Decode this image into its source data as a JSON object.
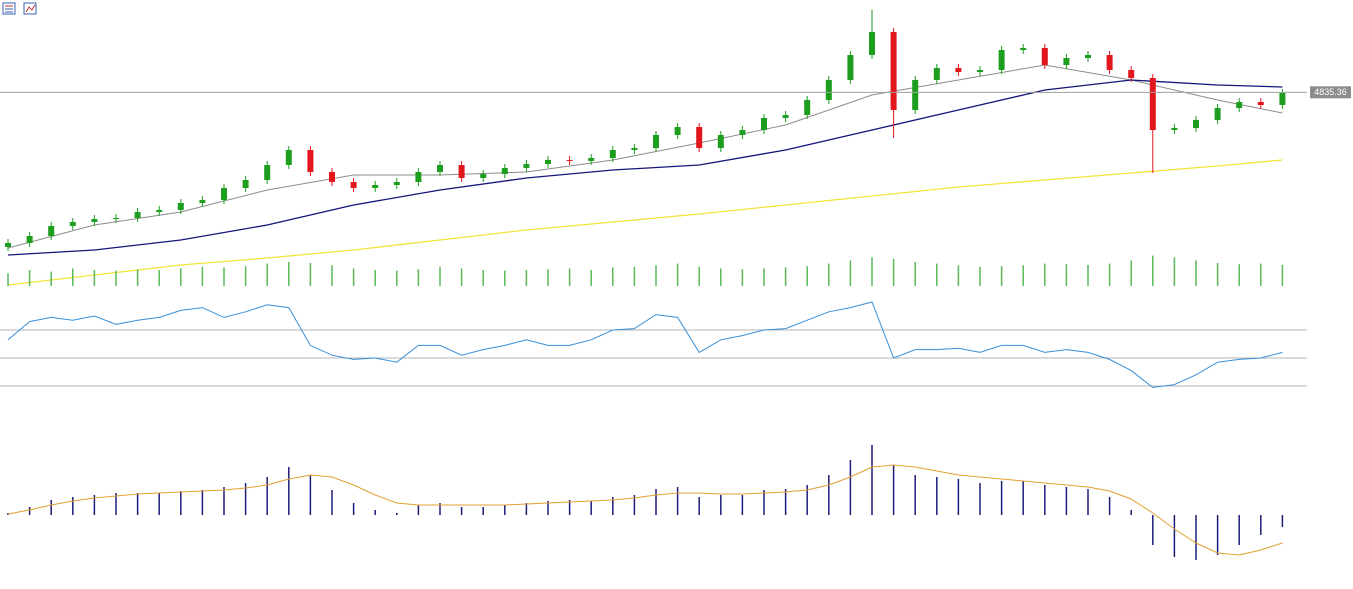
{
  "chart_data": [
    {
      "type": "candlestick",
      "ylim": [
        4440,
        5020
      ],
      "up_color": "#1e9e1e",
      "down_color": "#e3161e",
      "open": [
        4526,
        4534,
        4548,
        4568,
        4576,
        4582,
        4584,
        4596,
        4600,
        4614,
        4620,
        4644,
        4660,
        4690,
        4720,
        4676,
        4656,
        4644,
        4650,
        4656,
        4676,
        4690,
        4664,
        4672,
        4684,
        4692,
        4700,
        4698,
        4704,
        4720,
        4724,
        4750,
        4766,
        4724,
        4750,
        4760,
        4784,
        4790,
        4820,
        4860,
        4910,
        4956,
        4800,
        4860,
        4884,
        4876,
        4880,
        4920,
        4924,
        4890,
        4904,
        4910,
        4880,
        4864,
        4760,
        4764,
        4780,
        4804,
        4816,
        4810
      ],
      "high": [
        4542,
        4556,
        4576,
        4584,
        4590,
        4592,
        4604,
        4608,
        4622,
        4628,
        4652,
        4668,
        4698,
        4728,
        4728,
        4684,
        4664,
        4658,
        4664,
        4684,
        4698,
        4698,
        4680,
        4692,
        4700,
        4708,
        4708,
        4712,
        4728,
        4732,
        4758,
        4774,
        4774,
        4758,
        4768,
        4792,
        4798,
        4828,
        4868,
        4918,
        5000,
        4964,
        4868,
        4892,
        4892,
        4888,
        4928,
        4932,
        4932,
        4912,
        4918,
        4918,
        4888,
        4872,
        4772,
        4788,
        4812,
        4824,
        4824,
        4842
      ],
      "low": [
        4518,
        4526,
        4540,
        4560,
        4568,
        4574,
        4576,
        4588,
        4592,
        4606,
        4612,
        4636,
        4652,
        4682,
        4668,
        4648,
        4636,
        4636,
        4642,
        4648,
        4668,
        4656,
        4656,
        4664,
        4676,
        4684,
        4690,
        4690,
        4696,
        4712,
        4716,
        4742,
        4716,
        4716,
        4742,
        4752,
        4776,
        4782,
        4812,
        4852,
        4902,
        4744,
        4792,
        4852,
        4868,
        4868,
        4872,
        4912,
        4882,
        4882,
        4896,
        4872,
        4856,
        4674,
        4752,
        4756,
        4772,
        4796,
        4802,
        4802
      ],
      "close": [
        4534,
        4548,
        4568,
        4576,
        4582,
        4584,
        4596,
        4600,
        4614,
        4620,
        4644,
        4660,
        4690,
        4720,
        4676,
        4656,
        4644,
        4650,
        4656,
        4676,
        4690,
        4664,
        4672,
        4684,
        4692,
        4700,
        4698,
        4704,
        4720,
        4724,
        4750,
        4766,
        4724,
        4750,
        4760,
        4784,
        4790,
        4820,
        4860,
        4910,
        4956,
        4800,
        4860,
        4884,
        4876,
        4880,
        4920,
        4924,
        4890,
        4904,
        4910,
        4880,
        4864,
        4760,
        4764,
        4780,
        4804,
        4816,
        4810,
        4834
      ],
      "ma_points": [
        0,
        4,
        8,
        12,
        16,
        20,
        24,
        28,
        32,
        36,
        40,
        44,
        48,
        52,
        56,
        59
      ],
      "series": [
        {
          "color": "#8c8c8c",
          "values": [
            4524,
            4570,
            4596,
            4640,
            4670,
            4670,
            4676,
            4700,
            4734,
            4770,
            4830,
            4860,
            4890,
            4860,
            4820,
            4794
          ]
        },
        {
          "color": "#14147a",
          "values": [
            4510,
            4520,
            4540,
            4570,
            4610,
            4640,
            4664,
            4680,
            4690,
            4720,
            4760,
            4800,
            4840,
            4860,
            4850,
            4846
          ]
        },
        {
          "color": "#f2e43a",
          "values": [
            4450,
            4470,
            4490,
            4504,
            4520,
            4540,
            4560,
            4576,
            4592,
            4610,
            4628,
            4646,
            4660,
            4674,
            4688,
            4700
          ]
        }
      ],
      "last_price": 4835.36
    },
    {
      "type": "volume",
      "ylim": [
        0,
        100
      ],
      "color": "#58b858",
      "values": [
        40,
        50,
        45,
        55,
        50,
        48,
        52,
        50,
        55,
        60,
        58,
        62,
        70,
        75,
        72,
        65,
        55,
        50,
        48,
        52,
        60,
        55,
        50,
        48,
        50,
        52,
        55,
        50,
        58,
        60,
        65,
        70,
        60,
        55,
        52,
        55,
        58,
        62,
        70,
        80,
        90,
        85,
        75,
        70,
        65,
        60,
        62,
        65,
        70,
        68,
        66,
        70,
        80,
        95,
        90,
        80,
        72,
        68,
        70,
        66
      ]
    },
    {
      "type": "line",
      "ylim": [
        0,
        100
      ],
      "color": "#3a8fd6",
      "levels": [
        30,
        50,
        70
      ],
      "values": [
        63,
        76,
        79,
        77,
        80,
        74,
        77,
        79,
        84,
        86,
        79,
        83,
        88,
        86,
        59,
        52,
        49,
        50,
        47,
        59,
        59,
        52,
        56,
        59,
        63,
        59,
        59,
        63,
        70,
        71,
        81,
        79,
        54,
        63,
        66,
        70,
        71,
        77,
        83,
        86,
        90,
        50,
        56,
        56,
        57,
        54,
        59,
        59,
        54,
        56,
        54,
        49,
        41,
        29,
        31,
        38,
        47,
        49,
        50,
        54
      ]
    },
    {
      "type": "macd",
      "ylim": [
        -60,
        80
      ],
      "color": "#1c1c78",
      "signal_color": "#e0a030",
      "histogram": [
        2,
        8,
        15,
        18,
        20,
        22,
        22,
        22,
        24,
        25,
        28,
        32,
        38,
        48,
        40,
        25,
        12,
        5,
        2,
        10,
        12,
        8,
        8,
        10,
        12,
        14,
        15,
        14,
        18,
        20,
        26,
        28,
        18,
        20,
        20,
        25,
        26,
        30,
        40,
        55,
        70,
        50,
        40,
        38,
        36,
        32,
        34,
        34,
        30,
        28,
        26,
        18,
        5,
        -30,
        -42,
        -45,
        -40,
        -30,
        -20,
        -12
      ],
      "signal": [
        1,
        5,
        10,
        14,
        17,
        19,
        21,
        22,
        23,
        24,
        25,
        27,
        30,
        36,
        40,
        38,
        30,
        20,
        12,
        10,
        10,
        10,
        10,
        10,
        11,
        12,
        13,
        14,
        15,
        17,
        20,
        22,
        22,
        21,
        21,
        22,
        23,
        25,
        30,
        38,
        48,
        50,
        48,
        44,
        40,
        38,
        36,
        34,
        32,
        30,
        28,
        24,
        16,
        2,
        -14,
        -28,
        -38,
        -40,
        -35,
        -28
      ]
    }
  ]
}
